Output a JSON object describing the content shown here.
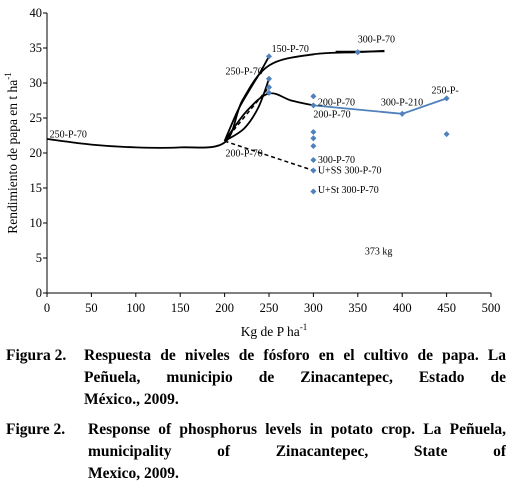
{
  "chart_data": {
    "type": "line",
    "ylabel": "Rendimiento de papa en t ha",
    "ylabel_sup": "-1",
    "xlabel": "Kg de P ha",
    "xlabel_sup": "-1",
    "xlim": [
      0,
      500
    ],
    "ylim": [
      0,
      40
    ],
    "xticks": [
      "0",
      "50",
      "100",
      "150",
      "200",
      "250",
      "300",
      "350",
      "400",
      "450",
      "500"
    ],
    "yticks": [
      "0",
      "5",
      "10",
      "15",
      "20",
      "25",
      "30",
      "35",
      "40"
    ],
    "grid": false,
    "legend": "none",
    "curves": [
      {
        "x": [
          0,
          50,
          100,
          150,
          200,
          220,
          250,
          300,
          350,
          380
        ],
        "y": [
          22,
          21.2,
          20.8,
          20.8,
          21.5,
          27.5,
          32.5,
          34.1,
          34.4,
          34.6
        ]
      },
      {
        "x": [
          200,
          215,
          228,
          240,
          250
        ],
        "y": [
          21.7,
          26.1,
          29,
          31.5,
          33.8
        ]
      },
      {
        "x": [
          200,
          222,
          238,
          250
        ],
        "y": [
          21.7,
          23.5,
          26.5,
          30.6
        ]
      },
      {
        "x": [
          200,
          225,
          250,
          275,
          300
        ],
        "y": [
          21.7,
          26,
          28.5,
          27.5,
          26.8
        ]
      }
    ],
    "series_blue_line": {
      "x": [
        300,
        400,
        450
      ],
      "y": [
        26.8,
        25.6,
        27.8
      ],
      "color": "#4f81bd"
    },
    "dashed_lines": [
      {
        "x": [
          200,
          250
        ],
        "y": [
          21.7,
          29.4
        ]
      },
      {
        "x": [
          200,
          300
        ],
        "y": [
          21.7,
          17.5
        ]
      }
    ],
    "flat_segment": {
      "x": [
        325,
        380
      ],
      "y": [
        34.5,
        34.5
      ]
    },
    "points": [
      {
        "x": 250,
        "y": 33.8
      },
      {
        "x": 250,
        "y": 30.6
      },
      {
        "x": 250,
        "y": 29.4
      },
      {
        "x": 250,
        "y": 28.6
      },
      {
        "x": 300,
        "y": 28.1
      },
      {
        "x": 300,
        "y": 26.8
      },
      {
        "x": 300,
        "y": 23
      },
      {
        "x": 300,
        "y": 22.1
      },
      {
        "x": 300,
        "y": 21
      },
      {
        "x": 300,
        "y": 19
      },
      {
        "x": 300,
        "y": 17.5
      },
      {
        "x": 300,
        "y": 14.5
      },
      {
        "x": 350,
        "y": 34.4
      },
      {
        "x": 400,
        "y": 25.6
      },
      {
        "x": 450,
        "y": 27.8
      },
      {
        "x": 450,
        "y": 22.7
      }
    ],
    "point_color": "#4f81bd",
    "annotations": [
      {
        "text": "250-P-70",
        "x": 3,
        "y": 22.2
      },
      {
        "text": "150-P-70",
        "x": 253,
        "y": 34.4
      },
      {
        "text": "300-P-70",
        "x": 350,
        "y": 35.8
      },
      {
        "text": "250-P-70",
        "x": 201,
        "y": 31.2
      },
      {
        "text": "250-P-",
        "x": 433,
        "y": 28.5
      },
      {
        "text": "200-P-70",
        "x": 305,
        "y": 26.8
      },
      {
        "text": "300-P-210",
        "x": 376,
        "y": 26.8
      },
      {
        "text": "200-P-70",
        "x": 300,
        "y": 25.1
      },
      {
        "text": "200-P-70",
        "x": 201,
        "y": 19.5
      },
      {
        "text": "300-P-70",
        "x": 305,
        "y": 18.6
      },
      {
        "text": "U+SS 300-P-70",
        "x": 305,
        "y": 17.1
      },
      {
        "text": "U+St 300-P-70",
        "x": 305,
        "y": 14.3
      },
      {
        "text": "373 kg",
        "x": 358,
        "y": 5.5
      }
    ]
  },
  "caption": {
    "es_label": "Figura 2.",
    "es_text": "Respuesta de niveles de fósforo en el cultivo de papa. La Peñuela, municipio de Zinacantepec, Estado de",
    "es_last": "México., 2009.",
    "en_label": "Figure 2.",
    "en_text": "Response of phosphorus levels in potato crop. La Peñuela, municipality of Zinacantepec, State of",
    "en_last": "Mexico, 2009."
  }
}
